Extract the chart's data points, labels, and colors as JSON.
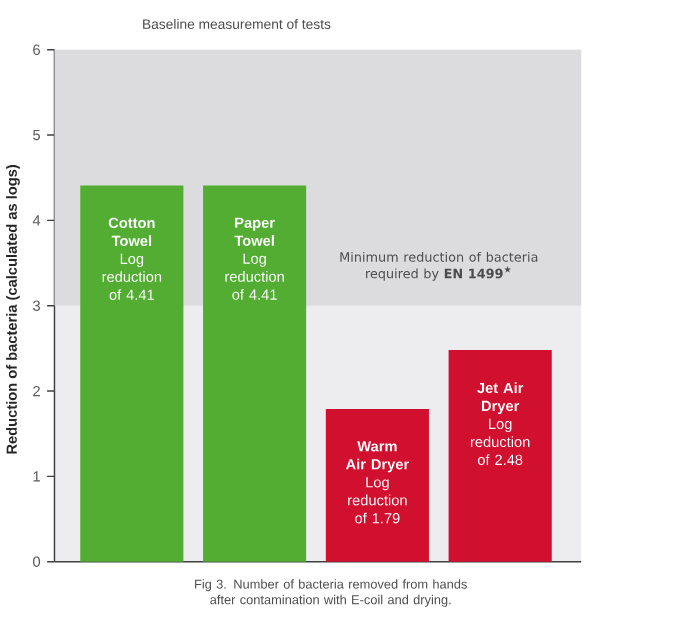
{
  "chart_data": {
    "type": "bar",
    "title": "Baseline measurement of tests",
    "ylabel": "Reduction of bacteria (calculated as logs)",
    "categories": [
      "Cotton Towel",
      "Paper Towel",
      "Warm Air Dryer",
      "Jet Air Dryer"
    ],
    "values": [
      4.41,
      4.41,
      1.79,
      2.48
    ],
    "colors": [
      "#52ad32",
      "#52ad32",
      "#d0102e",
      "#d0102e"
    ],
    "value_labels": [
      "Log reduction of 4.41",
      "Log reduction of 4.41",
      "Log reduction of 1.79",
      "Log reduction of 2.48"
    ],
    "ylim": [
      0,
      6
    ],
    "yticks": [
      0,
      1,
      2,
      3,
      4,
      5,
      6
    ],
    "bands": [
      {
        "axis": "y",
        "from": 3,
        "to": 6,
        "label": "Minimum reduction of bacteria required by **EN 1499**$^{★}$",
        "color": "#dcdcdf"
      }
    ],
    "annotations": [
      "Fig 3. Number of bacteria removed from hands after contamination with E-coil and drying."
    ]
  }
}
